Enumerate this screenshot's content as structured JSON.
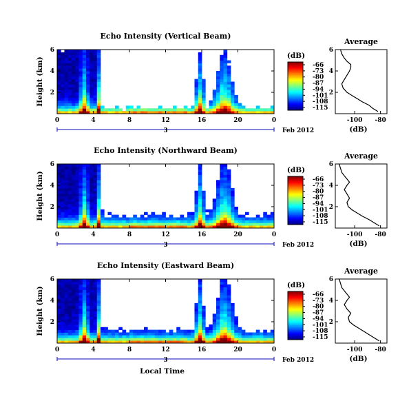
{
  "figure": {
    "xlabel": "Local Time",
    "date_label": "Feb 2012"
  },
  "chart_data": [
    {
      "type": "heatmap",
      "title": "Echo Intensity (Vertical Beam)",
      "ylabel": "Height (km)",
      "xlabel": "",
      "date_label": "Feb 2012",
      "xlim": [
        0,
        24
      ],
      "ylim": [
        0,
        6
      ],
      "x_ticks": [
        "0",
        "4",
        "8",
        "12",
        "16",
        "20",
        "0"
      ],
      "y_ticks": [
        "2",
        "4",
        "6"
      ],
      "day_marker": "3",
      "colorbar": {
        "label": "(dB)",
        "ticks": [
          "-66",
          "-73",
          "-80",
          "-87",
          "-94",
          "-101",
          "-108",
          "-115"
        ],
        "range": [
          -115,
          -66
        ]
      },
      "profile": {
        "type": "line",
        "title": "Average",
        "xlabel": "(dB)",
        "x_ticks": [
          "-100",
          "-80"
        ],
        "y_ticks": [
          "2",
          "4",
          "6"
        ],
        "xlim": [
          -115,
          -75
        ],
        "ylim": [
          0,
          6
        ],
        "x": [
          -82,
          -86,
          -89,
          -94,
          -98,
          -102,
          -106,
          -109,
          -110,
          -108,
          -106,
          -104,
          -103,
          -103,
          -106,
          -108,
          -110,
          -111
        ],
        "y": [
          0.2,
          0.5,
          0.8,
          1.1,
          1.4,
          1.7,
          2.0,
          2.4,
          2.8,
          3.2,
          3.6,
          4.0,
          4.3,
          4.6,
          4.9,
          5.2,
          5.6,
          6.0
        ]
      }
    },
    {
      "type": "heatmap",
      "title": "Echo Intensity (Northward Beam)",
      "ylabel": "Height (km)",
      "xlabel": "",
      "date_label": "Feb 2012",
      "xlim": [
        0,
        24
      ],
      "ylim": [
        0,
        6
      ],
      "x_ticks": [
        "0",
        "4",
        "8",
        "12",
        "16",
        "20",
        "0"
      ],
      "y_ticks": [
        "2",
        "4",
        "6"
      ],
      "day_marker": "3",
      "colorbar": {
        "label": "(dB)",
        "ticks": [
          "-66",
          "-73",
          "-80",
          "-87",
          "-94",
          "-101",
          "-108",
          "-115"
        ],
        "range": [
          -115,
          -66
        ]
      },
      "profile": {
        "type": "line",
        "title": "Average",
        "xlabel": "(dB)",
        "x_ticks": [
          "-100",
          "-80"
        ],
        "y_ticks": [
          "2",
          "4",
          "6"
        ],
        "xlim": [
          -115,
          -75
        ],
        "ylim": [
          0,
          6
        ],
        "x": [
          -81,
          -85,
          -89,
          -94,
          -98,
          -102,
          -105,
          -106,
          -104,
          -106,
          -108,
          -106,
          -104,
          -106,
          -108,
          -110,
          -111,
          -112
        ],
        "y": [
          0.2,
          0.5,
          0.8,
          1.1,
          1.4,
          1.7,
          2.0,
          2.4,
          2.8,
          3.2,
          3.6,
          4.0,
          4.3,
          4.6,
          4.9,
          5.2,
          5.6,
          6.0
        ]
      }
    },
    {
      "type": "heatmap",
      "title": "Echo Intensity (Eastward Beam)",
      "ylabel": "Height (km)",
      "xlabel": "Local Time",
      "date_label": "Feb 2012",
      "xlim": [
        0,
        24
      ],
      "ylim": [
        0,
        6
      ],
      "x_ticks": [
        "0",
        "4",
        "8",
        "12",
        "16",
        "20",
        "0"
      ],
      "y_ticks": [
        "2",
        "4",
        "6"
      ],
      "day_marker": "3",
      "colorbar": {
        "label": "(dB)",
        "ticks": [
          "-66",
          "-73",
          "-80",
          "-87",
          "-94",
          "-101",
          "-108",
          "-115"
        ],
        "range": [
          -115,
          -66
        ]
      },
      "profile": {
        "type": "line",
        "title": "Average",
        "xlabel": "(dB)",
        "x_ticks": [
          "-100",
          "-80"
        ],
        "y_ticks": [
          "2",
          "4",
          "6"
        ],
        "xlim": [
          -115,
          -75
        ],
        "ylim": [
          0,
          6
        ],
        "x": [
          -81,
          -85,
          -89,
          -93,
          -97,
          -101,
          -104,
          -105,
          -103,
          -106,
          -108,
          -106,
          -104,
          -106,
          -108,
          -110,
          -111,
          -112
        ],
        "y": [
          0.2,
          0.5,
          0.8,
          1.1,
          1.4,
          1.7,
          2.0,
          2.4,
          2.8,
          3.2,
          3.6,
          4.0,
          4.3,
          4.6,
          4.9,
          5.2,
          5.6,
          6.0
        ]
      }
    }
  ]
}
